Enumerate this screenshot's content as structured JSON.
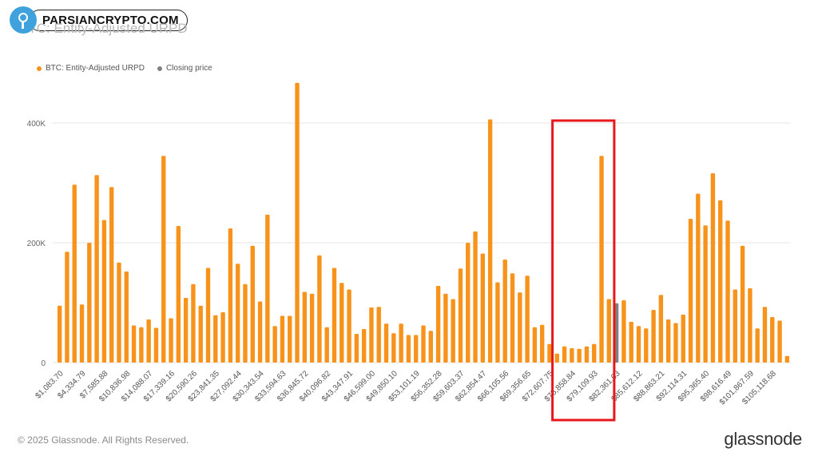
{
  "watermark": {
    "text": "PARSIANCRYPTO.COM",
    "icon": "tree-logo-icon"
  },
  "footer": {
    "copyright": "© 2025 Glassnode. All Rights Reserved.",
    "brand": "glassnode"
  },
  "colors": {
    "bar": "#f7931a",
    "closing": "#808080",
    "highlight": "#e8171c",
    "grid": "#e6e6e6"
  },
  "chart_data": {
    "type": "bar",
    "title": "BTC: Entity-Adjusted URPD",
    "legend": [
      {
        "name": "BTC: Entity-Adjusted URPD",
        "color": "#f7931a"
      },
      {
        "name": "Closing price",
        "color": "#808080"
      }
    ],
    "legend_position": "top-left",
    "grid": true,
    "ylim": [
      0,
      480000
    ],
    "y_ticks": [
      {
        "value": 0,
        "label": "0"
      },
      {
        "value": 200000,
        "label": "200K"
      },
      {
        "value": 400000,
        "label": "400K"
      }
    ],
    "x_tick_labels": [
      "$1,083.70",
      "$4,334.79",
      "$7,585.88",
      "$10,836.98",
      "$14,088.07",
      "$17,339.16",
      "$20,590.26",
      "$23,841.35",
      "$27,092.44",
      "$30,343.54",
      "$33,594.63",
      "$36,845.72",
      "$40,096.82",
      "$43,347.91",
      "$46,599.00",
      "$49,850.10",
      "$53,101.19",
      "$56,352.28",
      "$59,603.37",
      "$62,854.47",
      "$66,105.56",
      "$69,356.65",
      "$72,607.75",
      "$75,858.84",
      "$79,109.93",
      "$82,361.03",
      "$85,612.12",
      "$88,863.21",
      "$92,114.31",
      "$95,365.40",
      "$98,616.49",
      "$101,867.59",
      "$105,118.68"
    ],
    "values": [
      95000,
      185000,
      297000,
      97000,
      200000,
      313000,
      238000,
      293000,
      167000,
      152000,
      62000,
      59000,
      72000,
      58000,
      345000,
      74000,
      228000,
      108000,
      131000,
      95000,
      158000,
      79000,
      84000,
      224000,
      165000,
      131000,
      195000,
      102000,
      247000,
      61000,
      78000,
      78000,
      467000,
      118000,
      115000,
      179000,
      59000,
      158000,
      133000,
      122000,
      48000,
      56000,
      92000,
      93000,
      65000,
      49000,
      65000,
      46000,
      46000,
      62000,
      53000,
      128000,
      115000,
      106000,
      157000,
      200000,
      219000,
      182000,
      406000,
      134000,
      172000,
      149000,
      117000,
      145000,
      59000,
      63000,
      31000,
      15000,
      27000,
      24000,
      23000,
      27000,
      31000,
      345000,
      106000,
      99000,
      104000,
      68000,
      61000,
      57000,
      88000,
      113000,
      72000,
      66000,
      80000,
      240000,
      282000,
      229000,
      316000,
      271000,
      237000,
      122000,
      195000,
      124000,
      57000,
      93000,
      76000,
      70000,
      11000
    ],
    "closing_price_bar_index": 75,
    "highlight_range": [
      67,
      74
    ]
  }
}
